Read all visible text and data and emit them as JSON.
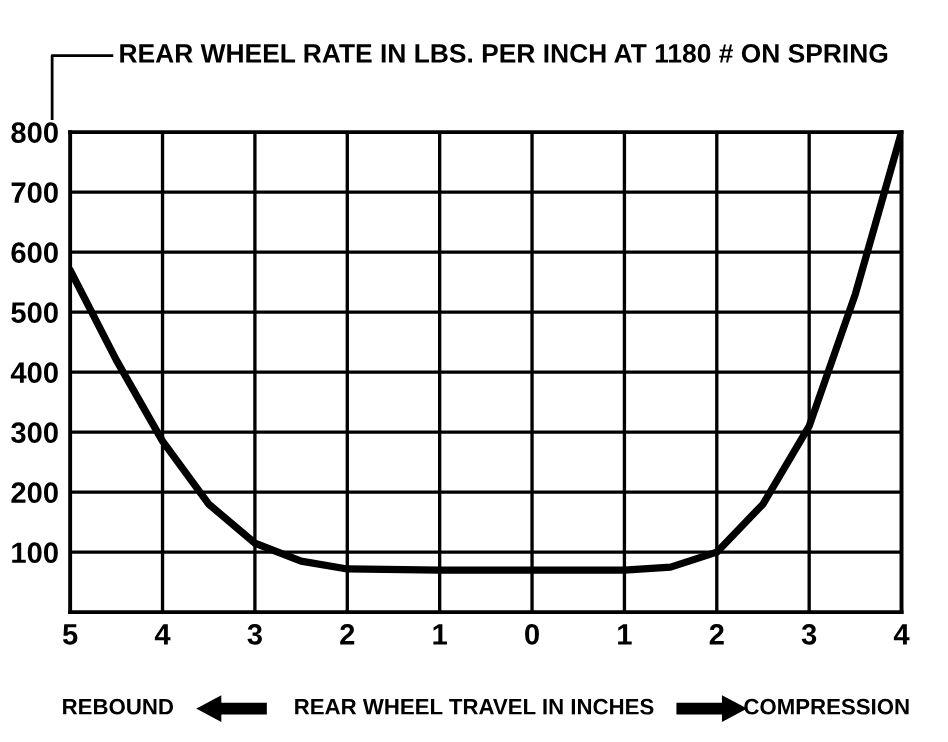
{
  "chart_data": {
    "type": "line",
    "ylabel": "REAR WHEEL RATE IN LBS. PER INCH AT 1180 # ON SPRING",
    "xlabel": "REAR WHEEL TRAVEL IN INCHES",
    "annotations": [
      "REBOUND",
      "COMPRESSION"
    ],
    "series": [
      {
        "color": "#000000",
        "x": [
          -5,
          -4.5,
          -4,
          -3.5,
          -3,
          -2.5,
          -2,
          -1,
          0,
          1,
          1.5,
          2,
          2.5,
          3,
          3.5,
          4
        ],
        "values": [
          570,
          420,
          285,
          180,
          115,
          85,
          72,
          70,
          70,
          70,
          75,
          100,
          180,
          310,
          530,
          800
        ]
      }
    ],
    "xlim": [
      -5,
      4
    ],
    "xticks": [
      {
        "value": -5,
        "label": "5"
      },
      {
        "value": -4,
        "label": "4"
      },
      {
        "value": -3,
        "label": "3"
      },
      {
        "value": -2,
        "label": "2"
      },
      {
        "value": -1,
        "label": "1"
      },
      0,
      1,
      2,
      3,
      4
    ],
    "ylim": [
      0,
      800
    ],
    "yticks": [
      100,
      200,
      300,
      400,
      500,
      600,
      700,
      800
    ],
    "grid": true,
    "marker": "none",
    "line_style": "solid"
  }
}
